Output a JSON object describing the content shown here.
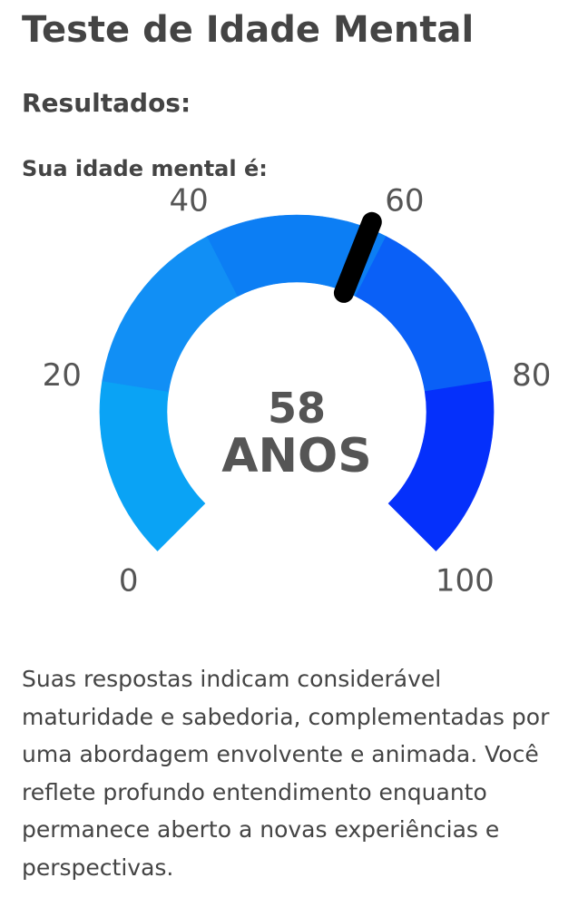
{
  "header": {
    "title": "Teste de Idade Mental"
  },
  "results": {
    "heading": "Resultados:",
    "subheading": "Sua idade mental é:"
  },
  "gauge": {
    "value": 58,
    "value_text": "58",
    "unit_text": "ANOS",
    "min": 0,
    "max": 100,
    "ticks": [
      {
        "value": 0,
        "label": "0"
      },
      {
        "value": 20,
        "label": "20"
      },
      {
        "value": 40,
        "label": "40"
      },
      {
        "value": 60,
        "label": "60"
      },
      {
        "value": 80,
        "label": "80"
      },
      {
        "value": 100,
        "label": "100"
      }
    ],
    "bands": [
      {
        "from": 0,
        "to": 20,
        "color": "#0aa3f5"
      },
      {
        "from": 20,
        "to": 40,
        "color": "#118ff5"
      },
      {
        "from": 40,
        "to": 60,
        "color": "#0c7ef4"
      },
      {
        "from": 60,
        "to": 80,
        "color": "#0a60f7"
      },
      {
        "from": 80,
        "to": 100,
        "color": "#0530fb"
      }
    ],
    "needle_color": "#000000"
  },
  "description": {
    "text": "Suas respostas indicam considerável maturidade e sabedoria, complementadas por uma abordagem envolvente e animada. Você reflete profundo entendimento enquanto permanece aberto a novas experiências e perspectivas."
  }
}
